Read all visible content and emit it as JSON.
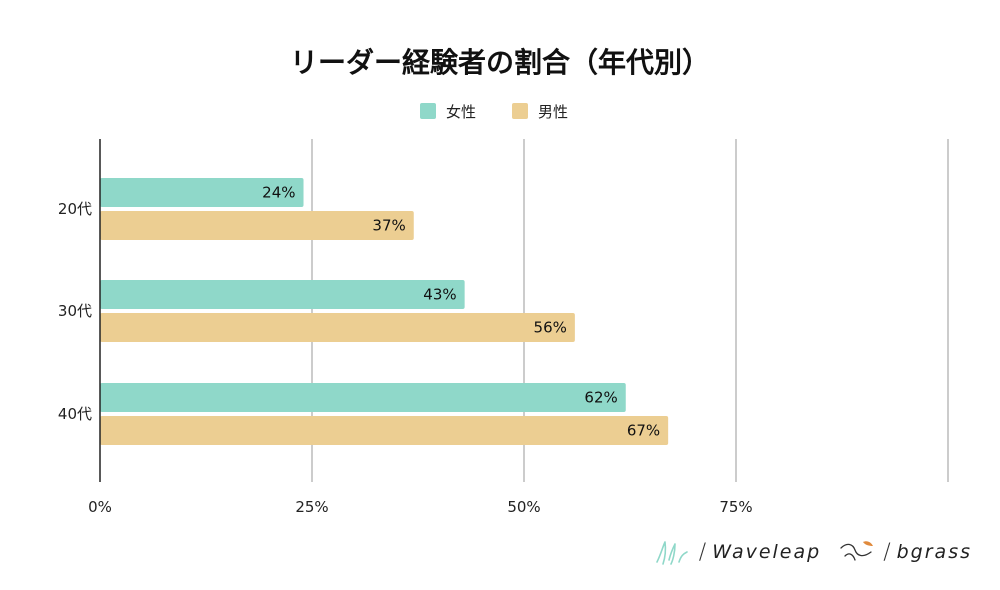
{
  "chart_data": {
    "type": "bar",
    "orientation": "horizontal",
    "title": "リーダー経験者の割合（年代別）",
    "categories": [
      "20代",
      "30代",
      "40代"
    ],
    "series": [
      {
        "name": "女性",
        "color": "#8fd8c9",
        "values": [
          24,
          43,
          62
        ],
        "labels": [
          "24%",
          "43%",
          "62%"
        ]
      },
      {
        "name": "男性",
        "color": "#ecce92",
        "values": [
          37,
          56,
          67
        ],
        "labels": [
          "37%",
          "56%",
          "67%"
        ]
      }
    ],
    "xlim": [
      0,
      100
    ],
    "xticks": [
      0,
      25,
      50,
      75,
      100
    ],
    "xtick_labels": [
      "0%",
      "25%",
      "50%",
      "75%",
      ""
    ],
    "grid": true,
    "legend": "top-center",
    "xlabel": "",
    "ylabel": ""
  },
  "logos": {
    "brand1": "Waveleap",
    "brand2": "bgrass",
    "separator": "/"
  }
}
